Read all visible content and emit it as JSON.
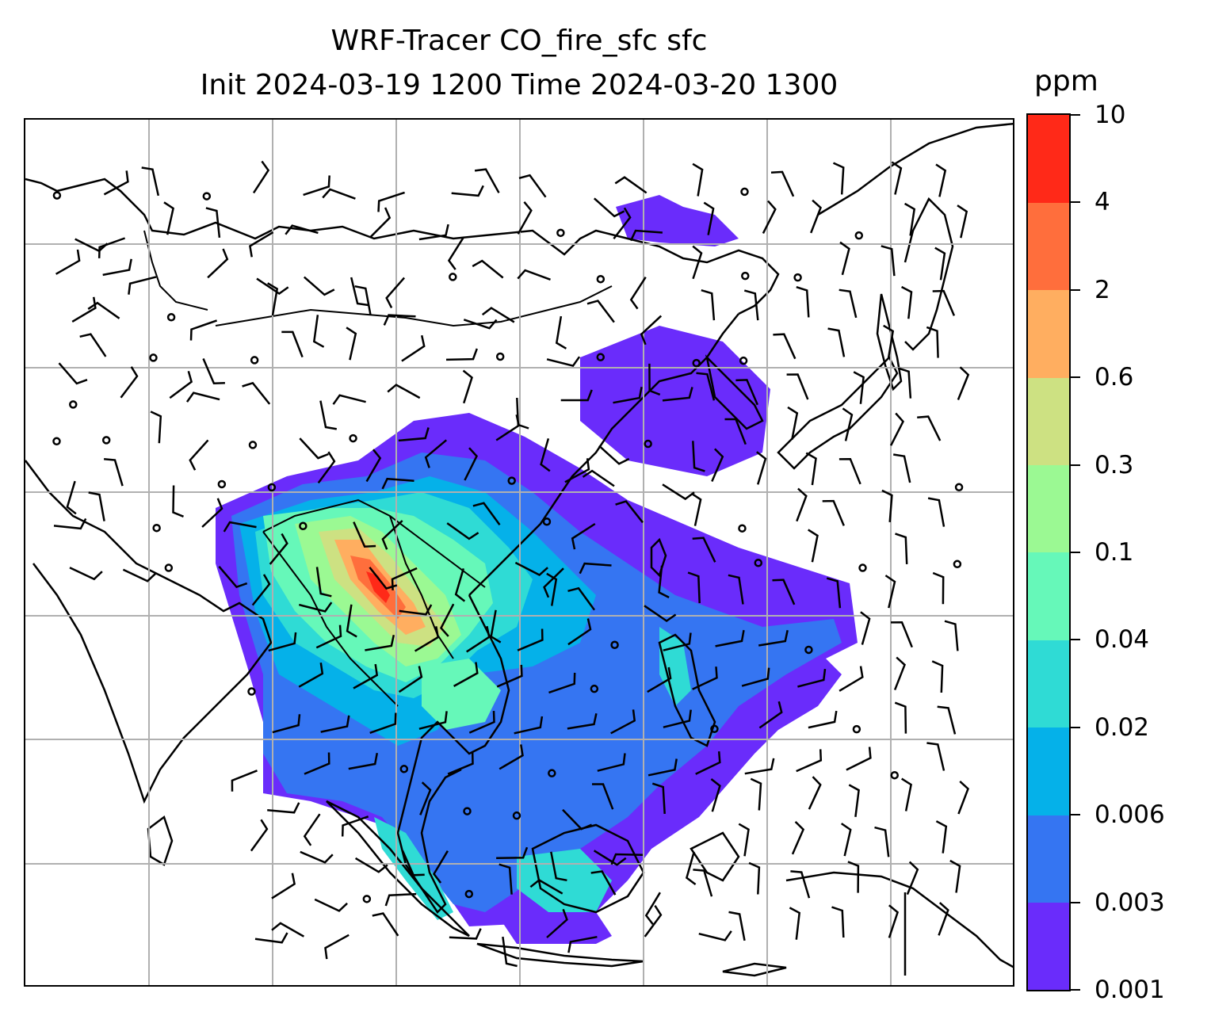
{
  "title": {
    "line1": "WRF-Tracer CO_fire_sfc sfc",
    "line2": "Init 2024-03-19 1200 Time 2024-03-20 1300"
  },
  "colorbar": {
    "unit": "ppm",
    "levels": [
      "0.001",
      "0.003",
      "0.006",
      "0.02",
      "0.04",
      "0.1",
      "0.3",
      "0.6",
      "2",
      "4",
      "10"
    ],
    "colors": [
      "#6a2cfb",
      "#3575f2",
      "#05b1e9",
      "#2fdbd5",
      "#66f8b9",
      "#9bf993",
      "#cde182",
      "#ffae60",
      "#ff6e3c",
      "#ff2918"
    ]
  },
  "map": {
    "coastline_color": "#000000",
    "grid_color": "#b0b0b0",
    "gridlines": "on",
    "layers": [
      "coastlines",
      "country borders",
      "CO_fire_sfc shading",
      "wind barbs"
    ]
  }
}
